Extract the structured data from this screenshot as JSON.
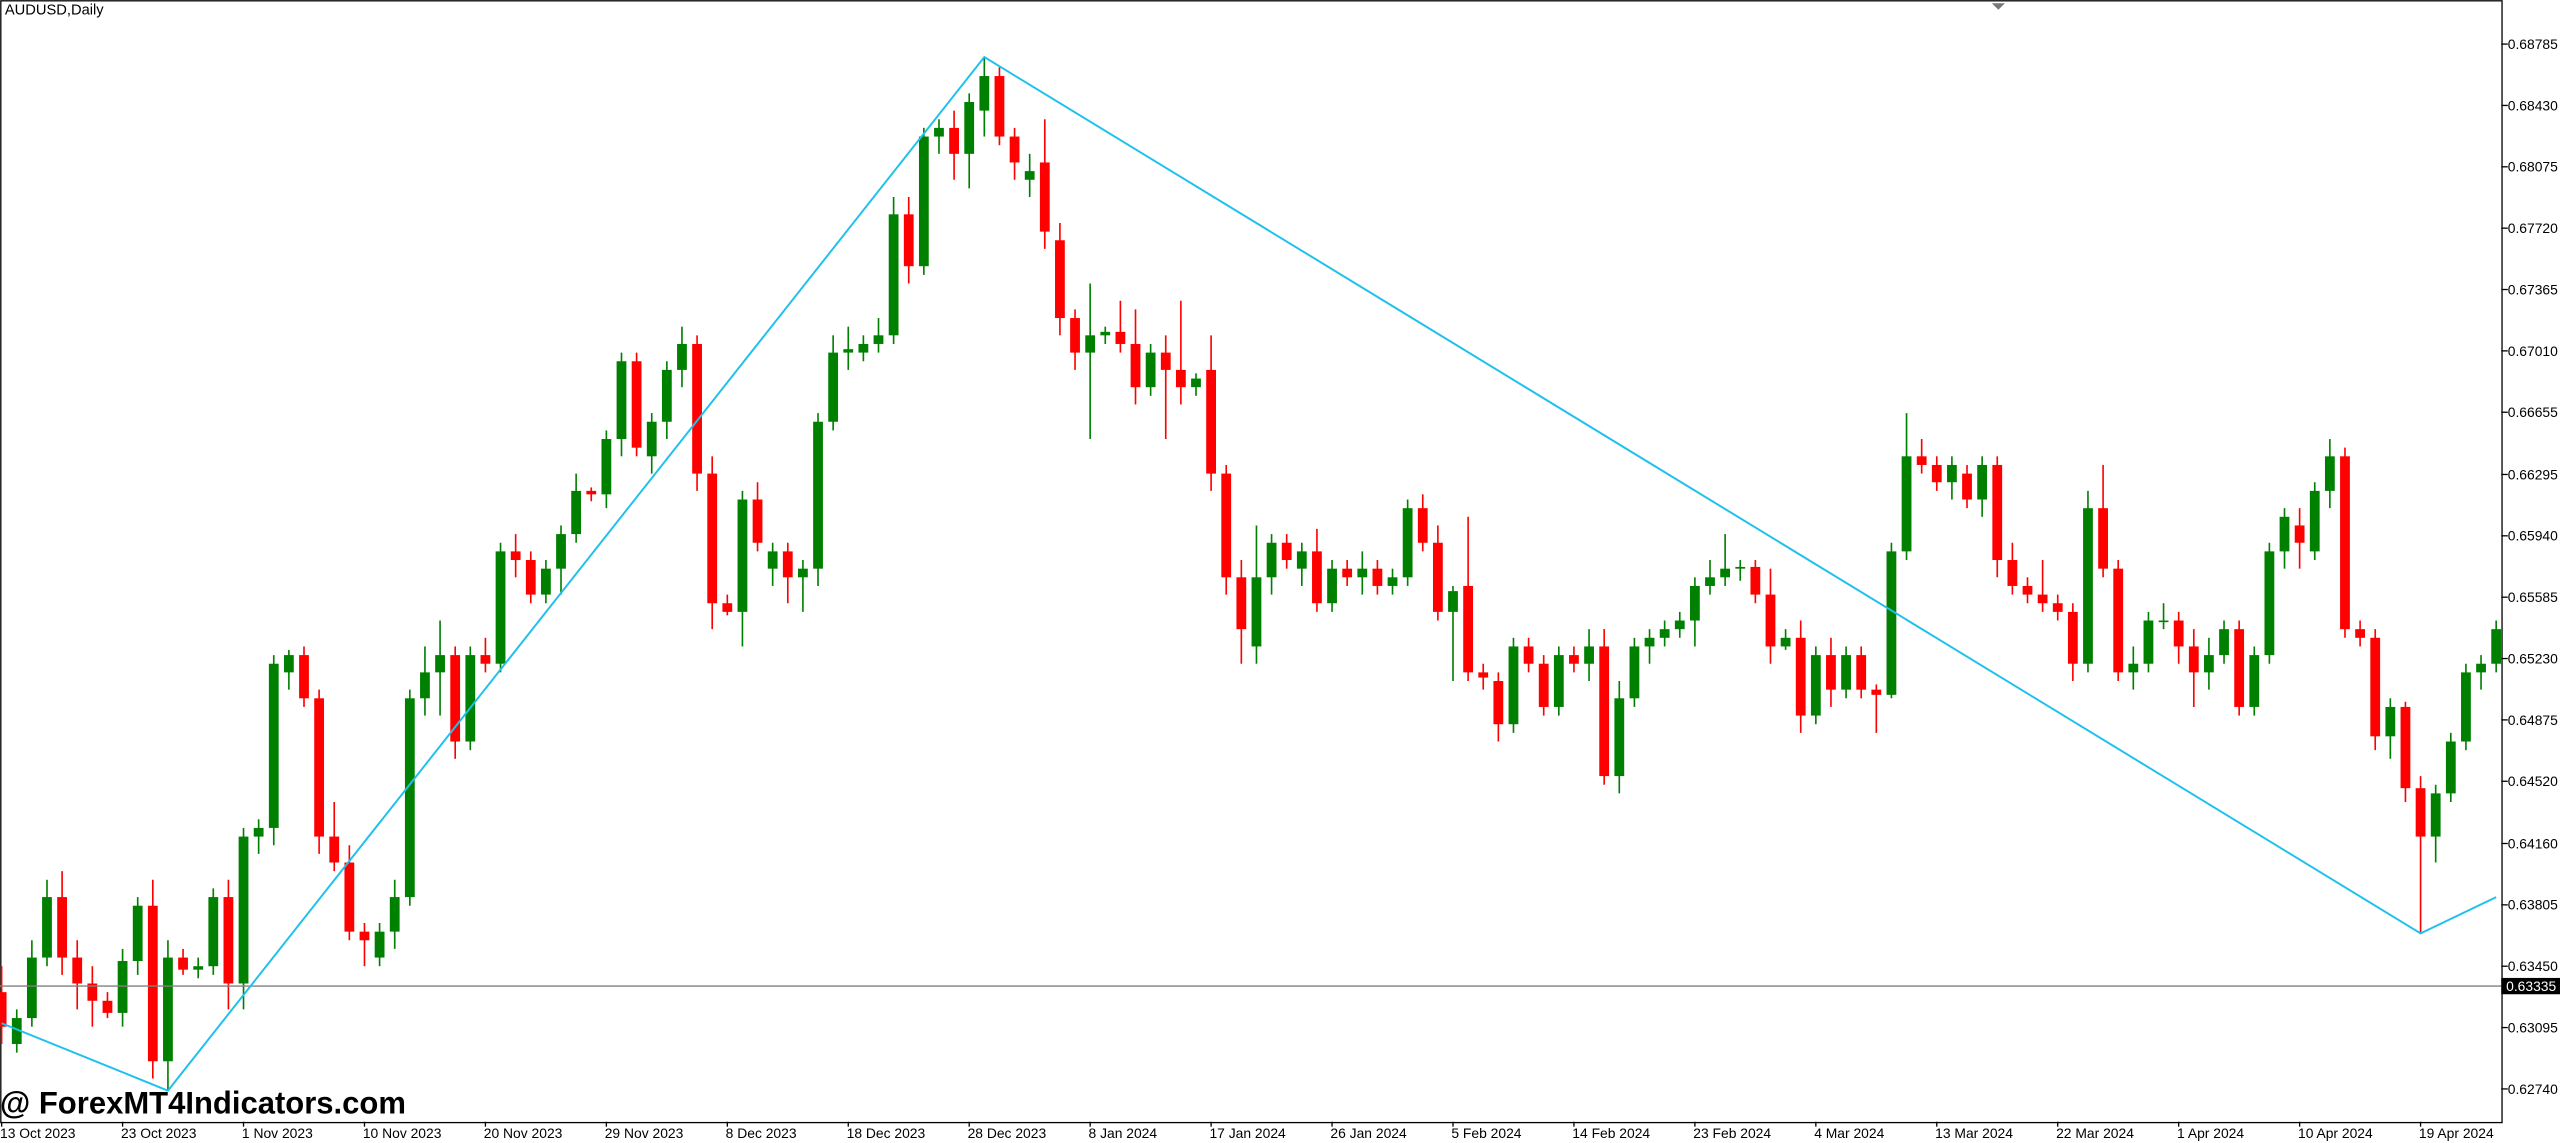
{
  "chart_data": {
    "type": "candlestick",
    "title": "AUDUSD,Daily",
    "watermark": "@ ForexMT4Indicators.com",
    "up_color": "#008000",
    "down_color": "#ff0000",
    "current_price": 0.63335,
    "current_price_color": "#808080",
    "ylim": [
      0.6255,
      0.6904
    ],
    "yticks": [
      {
        "value": 0.68785,
        "label": "0.68785"
      },
      {
        "value": 0.6843,
        "label": "0.68430"
      },
      {
        "value": 0.68075,
        "label": "0.68075"
      },
      {
        "value": 0.6772,
        "label": "0.67720"
      },
      {
        "value": 0.67365,
        "label": "0.67365"
      },
      {
        "value": 0.6701,
        "label": "0.67010"
      },
      {
        "value": 0.66655,
        "label": "0.66655"
      },
      {
        "value": 0.66295,
        "label": "0.66295"
      },
      {
        "value": 0.6594,
        "label": "0.65940"
      },
      {
        "value": 0.65585,
        "label": "0.65585"
      },
      {
        "value": 0.6523,
        "label": "0.65230"
      },
      {
        "value": 0.64875,
        "label": "0.64875"
      },
      {
        "value": 0.6452,
        "label": "0.64520"
      },
      {
        "value": 0.6416,
        "label": "0.64160"
      },
      {
        "value": 0.63805,
        "label": "0.63805"
      },
      {
        "value": 0.6345,
        "label": "0.63450"
      },
      {
        "value": 0.63095,
        "label": "0.63095"
      },
      {
        "value": 0.6274,
        "label": "0.62740"
      }
    ],
    "categories": [
      "13 Oct 2023",
      null,
      null,
      null,
      null,
      null,
      null,
      null,
      "23 Oct 2023",
      null,
      null,
      null,
      null,
      null,
      null,
      null,
      "1 Nov 2023",
      null,
      null,
      null,
      null,
      null,
      null,
      null,
      "10 Nov 2023",
      null,
      null,
      null,
      null,
      null,
      null,
      null,
      "20 Nov 2023",
      null,
      null,
      null,
      null,
      null,
      null,
      null,
      "29 Nov 2023",
      null,
      null,
      null,
      null,
      null,
      null,
      null,
      "8 Dec 2023",
      null,
      null,
      null,
      null,
      null,
      null,
      null,
      "18 Dec 2023",
      null,
      null,
      null,
      null,
      null,
      null,
      null,
      "28 Dec 2023",
      null,
      null,
      null,
      null,
      null,
      null,
      null,
      "8 Jan 2024",
      null,
      null,
      null,
      null,
      null,
      null,
      null,
      "17 Jan 2024",
      null,
      null,
      null,
      null,
      null,
      null,
      null,
      "26 Jan 2024",
      null,
      null,
      null,
      null,
      null,
      null,
      null,
      "5 Feb 2024",
      null,
      null,
      null,
      null,
      null,
      null,
      null,
      "14 Feb 2024",
      null,
      null,
      null,
      null,
      null,
      null,
      null,
      "23 Feb 2024",
      null,
      null,
      null,
      null,
      null,
      null,
      null,
      "4 Mar 2024",
      null,
      null,
      null,
      null,
      null,
      null,
      null,
      "13 Mar 2024",
      null,
      null,
      null,
      null,
      null,
      null,
      null,
      "22 Mar 2024",
      null,
      null,
      null,
      null,
      null,
      null,
      null,
      "1 Apr 2024",
      null,
      null,
      null,
      null,
      null,
      null,
      null,
      "10 Apr 2024",
      null,
      null,
      null,
      null,
      null,
      null,
      null,
      "19 Apr 2024",
      null,
      null,
      null,
      null,
      null
    ],
    "ohlc": [
      [
        0.633,
        0.6345,
        0.63,
        0.631
      ],
      [
        0.63,
        0.632,
        0.6295,
        0.6315
      ],
      [
        0.6315,
        0.636,
        0.631,
        0.635
      ],
      [
        0.635,
        0.6395,
        0.6345,
        0.6385
      ],
      [
        0.6385,
        0.64,
        0.634,
        0.635
      ],
      [
        0.635,
        0.636,
        0.632,
        0.6335
      ],
      [
        0.6335,
        0.6345,
        0.631,
        0.6325
      ],
      [
        0.6325,
        0.633,
        0.6315,
        0.6318
      ],
      [
        0.6318,
        0.6355,
        0.631,
        0.6348
      ],
      [
        0.6348,
        0.6385,
        0.634,
        0.638
      ],
      [
        0.638,
        0.6395,
        0.628,
        0.629
      ],
      [
        0.629,
        0.636,
        0.6273,
        0.635
      ],
      [
        0.635,
        0.6355,
        0.634,
        0.6343
      ],
      [
        0.6343,
        0.635,
        0.6338,
        0.6345
      ],
      [
        0.6345,
        0.639,
        0.634,
        0.6385
      ],
      [
        0.6385,
        0.6395,
        0.632,
        0.6335
      ],
      [
        0.6335,
        0.6425,
        0.632,
        0.642
      ],
      [
        0.642,
        0.643,
        0.641,
        0.6425
      ],
      [
        0.6425,
        0.6525,
        0.6415,
        0.652
      ],
      [
        0.6515,
        0.6528,
        0.6505,
        0.6525
      ],
      [
        0.6525,
        0.653,
        0.6495,
        0.65
      ],
      [
        0.65,
        0.6505,
        0.641,
        0.642
      ],
      [
        0.642,
        0.644,
        0.64,
        0.6405
      ],
      [
        0.6405,
        0.6415,
        0.636,
        0.6365
      ],
      [
        0.6365,
        0.637,
        0.6345,
        0.636
      ],
      [
        0.635,
        0.637,
        0.6345,
        0.6365
      ],
      [
        0.6365,
        0.6395,
        0.6355,
        0.6385
      ],
      [
        0.6385,
        0.6505,
        0.638,
        0.65
      ],
      [
        0.65,
        0.653,
        0.649,
        0.6515
      ],
      [
        0.6515,
        0.6545,
        0.649,
        0.6525
      ],
      [
        0.6525,
        0.653,
        0.6465,
        0.6475
      ],
      [
        0.6475,
        0.653,
        0.647,
        0.6525
      ],
      [
        0.6525,
        0.6535,
        0.6515,
        0.652
      ],
      [
        0.652,
        0.659,
        0.6515,
        0.6585
      ],
      [
        0.6585,
        0.6595,
        0.657,
        0.658
      ],
      [
        0.658,
        0.6585,
        0.6555,
        0.656
      ],
      [
        0.656,
        0.658,
        0.6555,
        0.6575
      ],
      [
        0.6575,
        0.66,
        0.656,
        0.6595
      ],
      [
        0.6595,
        0.663,
        0.659,
        0.662
      ],
      [
        0.662,
        0.6622,
        0.6614,
        0.6618
      ],
      [
        0.6618,
        0.6655,
        0.661,
        0.665
      ],
      [
        0.665,
        0.67,
        0.664,
        0.6695
      ],
      [
        0.6695,
        0.67,
        0.664,
        0.6645
      ],
      [
        0.664,
        0.6665,
        0.663,
        0.666
      ],
      [
        0.666,
        0.6695,
        0.665,
        0.669
      ],
      [
        0.669,
        0.6715,
        0.668,
        0.6705
      ],
      [
        0.6705,
        0.671,
        0.662,
        0.663
      ],
      [
        0.663,
        0.664,
        0.654,
        0.6555
      ],
      [
        0.6555,
        0.656,
        0.6548,
        0.655
      ],
      [
        0.655,
        0.662,
        0.653,
        0.6615
      ],
      [
        0.6615,
        0.6625,
        0.6585,
        0.659
      ],
      [
        0.6575,
        0.659,
        0.6565,
        0.6585
      ],
      [
        0.6585,
        0.659,
        0.6555,
        0.657
      ],
      [
        0.657,
        0.658,
        0.655,
        0.6575
      ],
      [
        0.6575,
        0.6665,
        0.6565,
        0.666
      ],
      [
        0.666,
        0.671,
        0.6655,
        0.67
      ],
      [
        0.67,
        0.6715,
        0.669,
        0.6702
      ],
      [
        0.67,
        0.671,
        0.6695,
        0.6705
      ],
      [
        0.6705,
        0.672,
        0.67,
        0.671
      ],
      [
        0.671,
        0.679,
        0.6705,
        0.678
      ],
      [
        0.678,
        0.679,
        0.674,
        0.675
      ],
      [
        0.675,
        0.683,
        0.6745,
        0.6825
      ],
      [
        0.6825,
        0.6835,
        0.6815,
        0.683
      ],
      [
        0.683,
        0.684,
        0.68,
        0.6815
      ],
      [
        0.6815,
        0.685,
        0.6795,
        0.6845
      ],
      [
        0.684,
        0.6871,
        0.6825,
        0.686
      ],
      [
        0.686,
        0.6865,
        0.682,
        0.6825
      ],
      [
        0.6825,
        0.683,
        0.68,
        0.681
      ],
      [
        0.68,
        0.6815,
        0.679,
        0.6805
      ],
      [
        0.681,
        0.6835,
        0.676,
        0.677
      ],
      [
        0.6765,
        0.6775,
        0.671,
        0.672
      ],
      [
        0.672,
        0.6725,
        0.669,
        0.67
      ],
      [
        0.67,
        0.674,
        0.665,
        0.671
      ],
      [
        0.671,
        0.6715,
        0.6705,
        0.6712
      ],
      [
        0.6712,
        0.673,
        0.67,
        0.6705
      ],
      [
        0.6705,
        0.6725,
        0.667,
        0.668
      ],
      [
        0.668,
        0.6705,
        0.6675,
        0.67
      ],
      [
        0.67,
        0.671,
        0.665,
        0.669
      ],
      [
        0.669,
        0.673,
        0.667,
        0.668
      ],
      [
        0.668,
        0.6688,
        0.6675,
        0.6685
      ],
      [
        0.669,
        0.671,
        0.662,
        0.663
      ],
      [
        0.663,
        0.6635,
        0.656,
        0.657
      ],
      [
        0.657,
        0.658,
        0.652,
        0.654
      ],
      [
        0.653,
        0.66,
        0.652,
        0.657
      ],
      [
        0.657,
        0.6595,
        0.656,
        0.659
      ],
      [
        0.659,
        0.6595,
        0.6575,
        0.658
      ],
      [
        0.6575,
        0.659,
        0.6565,
        0.6585
      ],
      [
        0.6585,
        0.6598,
        0.655,
        0.6555
      ],
      [
        0.6555,
        0.658,
        0.655,
        0.6575
      ],
      [
        0.6575,
        0.658,
        0.6565,
        0.657
      ],
      [
        0.657,
        0.6585,
        0.656,
        0.6575
      ],
      [
        0.6575,
        0.658,
        0.656,
        0.6565
      ],
      [
        0.6565,
        0.6575,
        0.656,
        0.657
      ],
      [
        0.657,
        0.6615,
        0.6565,
        0.661
      ],
      [
        0.661,
        0.6618,
        0.6585,
        0.659
      ],
      [
        0.659,
        0.66,
        0.6545,
        0.655
      ],
      [
        0.655,
        0.6565,
        0.651,
        0.6562
      ],
      [
        0.6565,
        0.6605,
        0.651,
        0.6515
      ],
      [
        0.6515,
        0.652,
        0.6505,
        0.6512
      ],
      [
        0.651,
        0.6515,
        0.6475,
        0.6485
      ],
      [
        0.6485,
        0.6535,
        0.648,
        0.653
      ],
      [
        0.653,
        0.6535,
        0.6515,
        0.652
      ],
      [
        0.652,
        0.6525,
        0.649,
        0.6495
      ],
      [
        0.6495,
        0.653,
        0.649,
        0.6525
      ],
      [
        0.6525,
        0.653,
        0.6515,
        0.652
      ],
      [
        0.652,
        0.654,
        0.651,
        0.653
      ],
      [
        0.653,
        0.654,
        0.645,
        0.6455
      ],
      [
        0.6455,
        0.651,
        0.6445,
        0.65
      ],
      [
        0.65,
        0.6535,
        0.6495,
        0.653
      ],
      [
        0.653,
        0.654,
        0.652,
        0.6535
      ],
      [
        0.6535,
        0.6545,
        0.653,
        0.654
      ],
      [
        0.654,
        0.655,
        0.6535,
        0.6545
      ],
      [
        0.6545,
        0.657,
        0.653,
        0.6565
      ],
      [
        0.6565,
        0.658,
        0.656,
        0.657
      ],
      [
        0.657,
        0.6595,
        0.6565,
        0.6575
      ],
      [
        0.6575,
        0.658,
        0.6568,
        0.6576
      ],
      [
        0.6576,
        0.658,
        0.6555,
        0.656
      ],
      [
        0.656,
        0.6575,
        0.652,
        0.653
      ],
      [
        0.653,
        0.654,
        0.6528,
        0.6535
      ],
      [
        0.6535,
        0.6545,
        0.648,
        0.649
      ],
      [
        0.649,
        0.653,
        0.6485,
        0.6525
      ],
      [
        0.6525,
        0.6535,
        0.6495,
        0.6505
      ],
      [
        0.6505,
        0.653,
        0.65,
        0.6525
      ],
      [
        0.6525,
        0.653,
        0.65,
        0.6505
      ],
      [
        0.6505,
        0.6508,
        0.648,
        0.6502
      ],
      [
        0.6502,
        0.659,
        0.65,
        0.6585
      ],
      [
        0.6585,
        0.6665,
        0.658,
        0.664
      ],
      [
        0.664,
        0.665,
        0.663,
        0.6635
      ],
      [
        0.6635,
        0.664,
        0.662,
        0.6625
      ],
      [
        0.6625,
        0.664,
        0.6615,
        0.6635
      ],
      [
        0.663,
        0.6635,
        0.661,
        0.6615
      ],
      [
        0.6615,
        0.664,
        0.6605,
        0.6635
      ],
      [
        0.6635,
        0.664,
        0.657,
        0.658
      ],
      [
        0.658,
        0.659,
        0.656,
        0.6565
      ],
      [
        0.6565,
        0.657,
        0.6555,
        0.656
      ],
      [
        0.656,
        0.658,
        0.655,
        0.6555
      ],
      [
        0.6555,
        0.656,
        0.6545,
        0.655
      ],
      [
        0.655,
        0.6555,
        0.651,
        0.652
      ],
      [
        0.652,
        0.662,
        0.6515,
        0.661
      ],
      [
        0.661,
        0.6635,
        0.657,
        0.6575
      ],
      [
        0.6575,
        0.658,
        0.651,
        0.6515
      ],
      [
        0.6515,
        0.653,
        0.6505,
        0.652
      ],
      [
        0.652,
        0.655,
        0.6515,
        0.6545
      ],
      [
        0.6545,
        0.6555,
        0.654,
        0.6545
      ],
      [
        0.6545,
        0.655,
        0.652,
        0.653
      ],
      [
        0.653,
        0.654,
        0.6495,
        0.6515
      ],
      [
        0.6515,
        0.6535,
        0.6505,
        0.6525
      ],
      [
        0.6525,
        0.6545,
        0.652,
        0.654
      ],
      [
        0.654,
        0.6545,
        0.649,
        0.6495
      ],
      [
        0.6495,
        0.653,
        0.649,
        0.6525
      ],
      [
        0.6525,
        0.659,
        0.652,
        0.6585
      ],
      [
        0.6585,
        0.661,
        0.6575,
        0.6605
      ],
      [
        0.66,
        0.661,
        0.6575,
        0.659
      ],
      [
        0.6585,
        0.6625,
        0.658,
        0.662
      ],
      [
        0.662,
        0.665,
        0.661,
        0.664
      ],
      [
        0.664,
        0.6645,
        0.6535,
        0.654
      ],
      [
        0.654,
        0.6545,
        0.653,
        0.6535
      ],
      [
        0.6535,
        0.654,
        0.647,
        0.6478
      ],
      [
        0.6478,
        0.65,
        0.6465,
        0.6495
      ],
      [
        0.6495,
        0.6498,
        0.644,
        0.6448
      ],
      [
        0.6448,
        0.6455,
        0.6364,
        0.642
      ],
      [
        0.642,
        0.645,
        0.6405,
        0.6445
      ],
      [
        0.6445,
        0.648,
        0.644,
        0.6475
      ],
      [
        0.6475,
        0.652,
        0.647,
        0.6515
      ],
      [
        0.6515,
        0.6525,
        0.6505,
        0.652
      ],
      [
        0.652,
        0.6545,
        0.6515,
        0.654
      ]
    ],
    "zigzag": {
      "color": "#1ec0ee",
      "x": [
        0,
        11,
        65,
        160,
        165
      ],
      "values": [
        0.6312,
        0.6273,
        0.6871,
        0.6364,
        0.6385
      ]
    }
  }
}
